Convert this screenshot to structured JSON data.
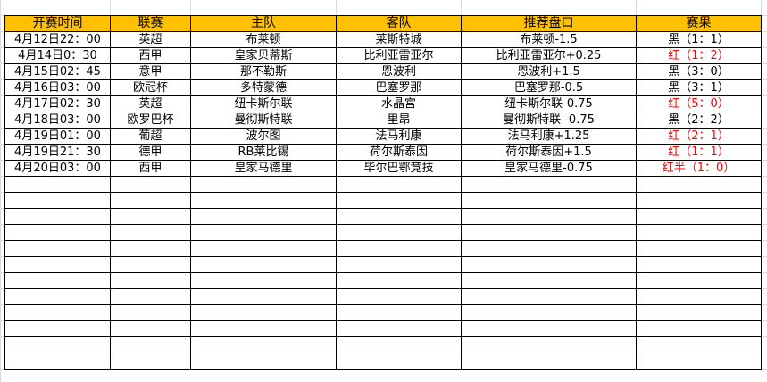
{
  "headers": [
    "开赛时间",
    "联赛",
    "主队",
    "客队",
    "推荐盘口",
    "赛果"
  ],
  "rows": [
    {
      "time": "4月12日22：00",
      "league": "英超",
      "home": "布莱顿",
      "away": "莱斯特城",
      "pick": "布莱顿-1.5",
      "result": "黑（1：1）",
      "win": false
    },
    {
      "time": "4月14日0：30",
      "league": "西甲",
      "home": "皇家贝蒂斯",
      "away": "比利亚雷亚尔",
      "pick": "比利亚雷亚尔+0.25",
      "result": "红（1：2）",
      "win": true
    },
    {
      "time": "4月15日02：45",
      "league": "意甲",
      "home": "那不勒斯",
      "away": "恩波利",
      "pick": "恩波利+1.5",
      "result": "黑（3：0）",
      "win": false
    },
    {
      "time": "4月16日03：00",
      "league": "欧冠杯",
      "home": "多特蒙德",
      "away": "巴塞罗那",
      "pick": "巴塞罗那-0.5",
      "result": "黑（3：1）",
      "win": false
    },
    {
      "time": "4月17日02：30",
      "league": "英超",
      "home": "纽卡斯尔联",
      "away": "水晶宫",
      "pick": "纽卡斯尔联-0.75",
      "result": "红（5：0）",
      "win": true
    },
    {
      "time": "4月18日03：00",
      "league": "欧罗巴杯",
      "home": "曼彻斯特联",
      "away": "里昂",
      "pick": "曼彻斯特联 -0.75",
      "result": "黑（2：2）",
      "win": false
    },
    {
      "time": "4月19日01：00",
      "league": "葡超",
      "home": "波尔图",
      "away": "法马利康",
      "pick": "法马利康+1.25",
      "result": "红（2：1）",
      "win": true
    },
    {
      "time": "4月19日21：30",
      "league": "德甲",
      "home": "RB莱比锡",
      "away": "荷尔斯泰因",
      "pick": "荷尔斯泰因+1.5",
      "result": "红（1：1）",
      "win": true
    },
    {
      "time": "4月20日03：00",
      "league": "西甲",
      "home": "皇家马德里",
      "away": "毕尔巴鄂竞技",
      "pick": "皇家马德里-0.75",
      "result": "红半（1：0）",
      "win": true
    }
  ],
  "colors": {
    "header_bg": "#ffc000",
    "win": "#ff0000",
    "loss": "#000000"
  }
}
